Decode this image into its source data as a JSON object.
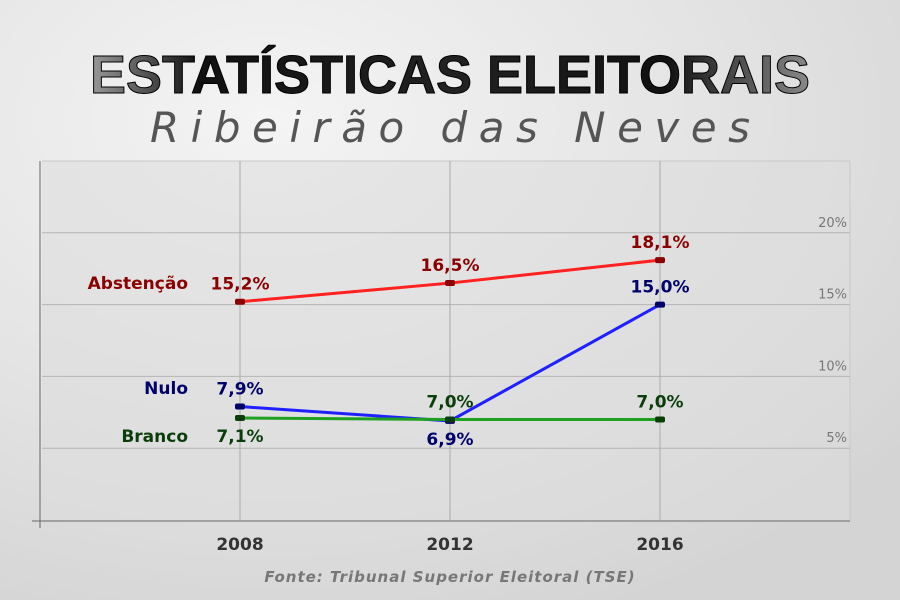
{
  "header": {
    "title": "ESTATÍSTICAS ELEITORAIS",
    "subtitle": "Ribeirão das Neves"
  },
  "footer": {
    "source": "Fonte: Tribunal Superior Eleitoral (TSE)"
  },
  "chart_data": {
    "type": "line",
    "title": "ESTATÍSTICAS ELEITORAIS - Ribeirão das Neves",
    "x": [
      2008,
      2012,
      2016
    ],
    "x_tick_labels": [
      "2008",
      "2012",
      "2016"
    ],
    "ylim": [
      0,
      25
    ],
    "y_ticks": [
      5,
      10,
      15,
      20
    ],
    "y_tick_labels": [
      "5%",
      "10%",
      "15%",
      "20%"
    ],
    "y_axis_side": "right",
    "grid": true,
    "series": [
      {
        "name": "Abstenção",
        "color": "#ff2020",
        "label_color": "#8b0000",
        "values": [
          15.2,
          16.5,
          18.1
        ],
        "labels": [
          "15,2%",
          "16,5%",
          "18,1%"
        ],
        "label_pos": [
          "above",
          "above",
          "above"
        ]
      },
      {
        "name": "Nulo",
        "color": "#2020ff",
        "label_color": "#00006b",
        "values": [
          7.9,
          6.9,
          15.0
        ],
        "labels": [
          "7,9%",
          "6,9%",
          "15,0%"
        ],
        "label_pos": [
          "above",
          "below",
          "above"
        ]
      },
      {
        "name": "Branco",
        "color": "#20a020",
        "label_color": "#0b3d0b",
        "values": [
          7.1,
          7.0,
          7.0
        ],
        "labels": [
          "7,1%",
          "7,0%",
          "7,0%"
        ],
        "label_pos": [
          "inline",
          "above",
          "above"
        ]
      }
    ]
  }
}
